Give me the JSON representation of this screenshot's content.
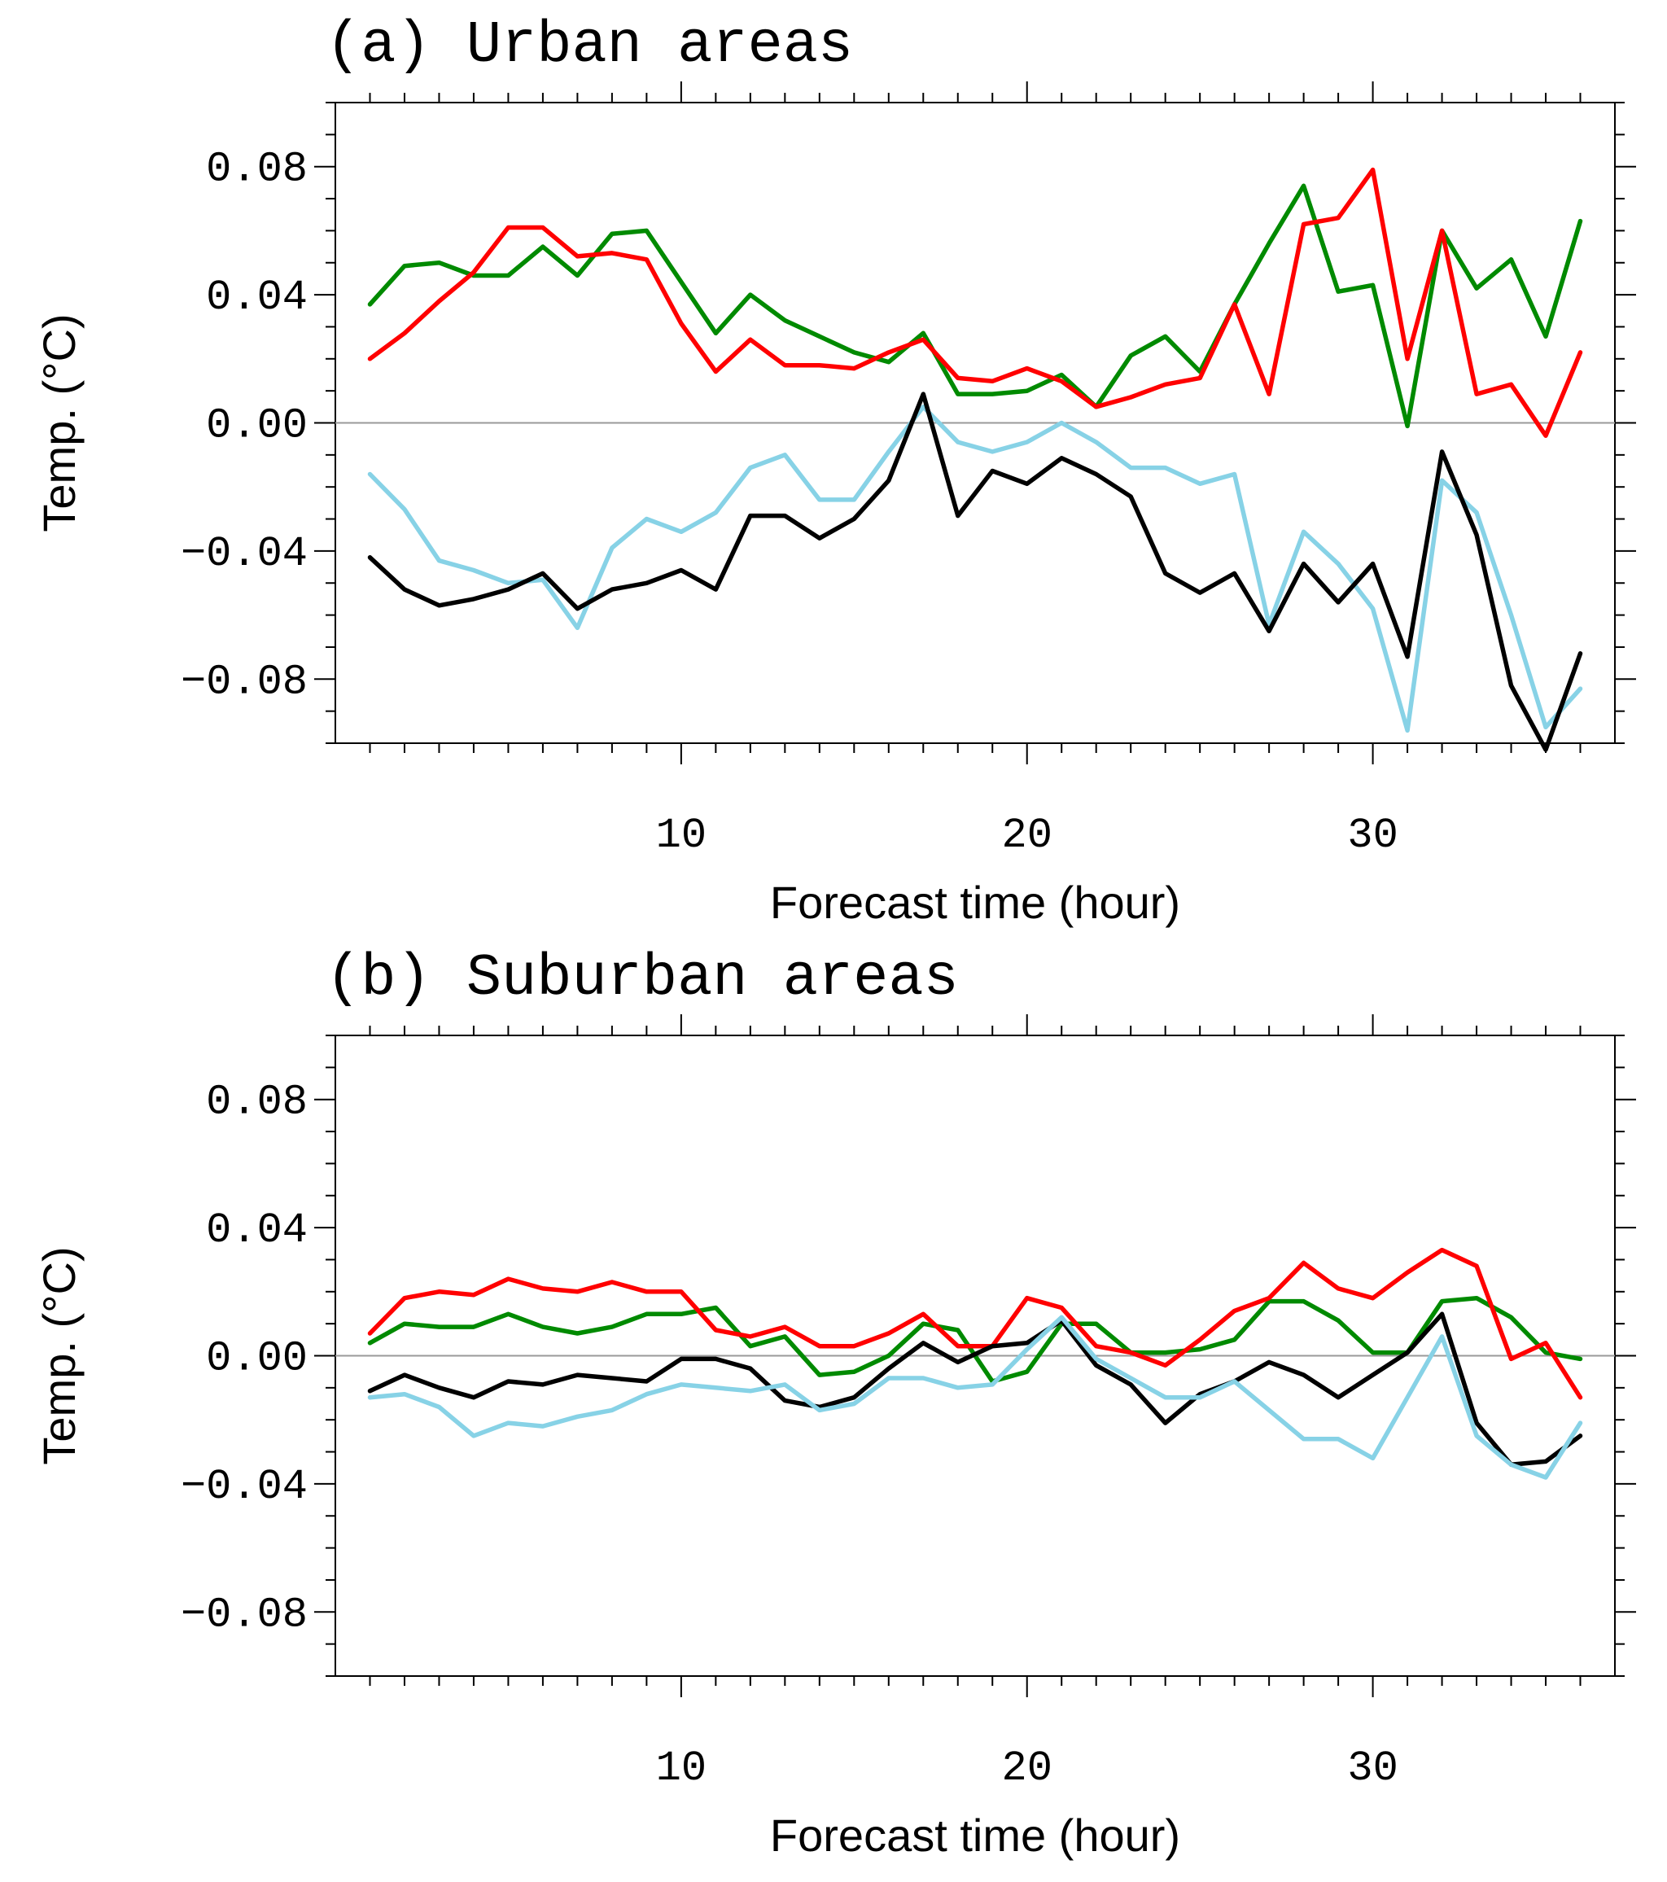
{
  "chart_data": [
    {
      "type": "line",
      "title": "(a) Urban areas",
      "xlabel": "Forecast time (hour)",
      "ylabel": "Temp. (°C)",
      "xlim": [
        0,
        37
      ],
      "ylim": [
        -0.1,
        0.1
      ],
      "xticks": [
        10,
        20,
        30
      ],
      "xtick_labels": [
        "10",
        "20",
        "30"
      ],
      "yticks": [
        0.08,
        0.04,
        0,
        -0.04,
        -0.08
      ],
      "ytick_labels": [
        "0.08",
        "0.04",
        "0.00",
        "−0.04",
        "−0.08"
      ],
      "zero_line": true,
      "x": [
        1,
        2,
        3,
        4,
        5,
        6,
        7,
        8,
        9,
        10,
        11,
        12,
        13,
        14,
        15,
        16,
        17,
        18,
        19,
        20,
        21,
        22,
        23,
        24,
        25,
        26,
        27,
        28,
        29,
        30,
        31,
        32,
        33,
        34,
        35,
        36
      ],
      "series": [
        {
          "name": "green",
          "color": "#008a00",
          "values": [
            0.037,
            0.049,
            0.05,
            0.046,
            0.046,
            0.055,
            0.046,
            0.059,
            0.06,
            0.044,
            0.028,
            0.04,
            0.032,
            0.027,
            0.022,
            0.019,
            0.028,
            0.009,
            0.009,
            0.01,
            0.015,
            0.005,
            0.021,
            0.027,
            0.016,
            0.037,
            0.056,
            0.074,
            0.041,
            0.043,
            -0.001,
            0.06,
            0.042,
            0.051,
            0.027,
            0.063
          ]
        },
        {
          "name": "red",
          "color": "#ff0000",
          "values": [
            0.02,
            0.028,
            0.038,
            0.047,
            0.061,
            0.061,
            0.052,
            0.053,
            0.051,
            0.031,
            0.016,
            0.026,
            0.018,
            0.018,
            0.017,
            0.022,
            0.026,
            0.014,
            0.013,
            0.017,
            0.013,
            0.005,
            0.008,
            0.012,
            0.014,
            0.037,
            0.009,
            0.062,
            0.064,
            0.079,
            0.02,
            0.06,
            0.009,
            0.012,
            -0.004,
            0.022
          ]
        },
        {
          "name": "light-blue",
          "color": "#87d2e6",
          "values": [
            -0.016,
            -0.027,
            -0.043,
            -0.046,
            -0.05,
            -0.049,
            -0.064,
            -0.039,
            -0.03,
            -0.034,
            -0.028,
            -0.014,
            -0.01,
            -0.024,
            -0.024,
            -0.009,
            0.005,
            -0.006,
            -0.009,
            -0.006,
            0.0,
            -0.006,
            -0.014,
            -0.014,
            -0.019,
            -0.016,
            -0.063,
            -0.034,
            -0.044,
            -0.058,
            -0.096,
            -0.018,
            -0.028,
            -0.06,
            -0.095,
            -0.083
          ]
        },
        {
          "name": "black",
          "color": "#000000",
          "values": [
            -0.042,
            -0.052,
            -0.057,
            -0.055,
            -0.052,
            -0.047,
            -0.058,
            -0.052,
            -0.05,
            -0.046,
            -0.052,
            -0.029,
            -0.029,
            -0.036,
            -0.03,
            -0.018,
            0.009,
            -0.029,
            -0.015,
            -0.019,
            -0.011,
            -0.016,
            -0.023,
            -0.047,
            -0.053,
            -0.047,
            -0.065,
            -0.044,
            -0.056,
            -0.044,
            -0.073,
            -0.009,
            -0.035,
            -0.082,
            -0.102,
            -0.072
          ]
        }
      ]
    },
    {
      "type": "line",
      "title": "(b) Suburban areas",
      "xlabel": "Forecast time (hour)",
      "ylabel": "Temp. (°C)",
      "xlim": [
        0,
        37
      ],
      "ylim": [
        -0.1,
        0.1
      ],
      "xticks": [
        10,
        20,
        30
      ],
      "xtick_labels": [
        "10",
        "20",
        "30"
      ],
      "yticks": [
        0.08,
        0.04,
        0,
        -0.04,
        -0.08
      ],
      "ytick_labels": [
        "0.08",
        "0.04",
        "0.00",
        "−0.04",
        "−0.08"
      ],
      "zero_line": true,
      "x": [
        1,
        2,
        3,
        4,
        5,
        6,
        7,
        8,
        9,
        10,
        11,
        12,
        13,
        14,
        15,
        16,
        17,
        18,
        19,
        20,
        21,
        22,
        23,
        24,
        25,
        26,
        27,
        28,
        29,
        30,
        31,
        32,
        33,
        34,
        35,
        36
      ],
      "series": [
        {
          "name": "green",
          "color": "#008a00",
          "values": [
            0.004,
            0.01,
            0.009,
            0.009,
            0.013,
            0.009,
            0.007,
            0.009,
            0.013,
            0.013,
            0.015,
            0.003,
            0.006,
            -0.006,
            -0.005,
            0.0,
            0.01,
            0.008,
            -0.008,
            -0.005,
            0.01,
            0.01,
            0.001,
            0.001,
            0.002,
            0.005,
            0.017,
            0.017,
            0.011,
            0.001,
            0.001,
            0.017,
            0.018,
            0.012,
            0.001,
            -0.001
          ]
        },
        {
          "name": "red",
          "color": "#ff0000",
          "values": [
            0.007,
            0.018,
            0.02,
            0.019,
            0.024,
            0.021,
            0.02,
            0.023,
            0.02,
            0.02,
            0.008,
            0.006,
            0.009,
            0.003,
            0.003,
            0.007,
            0.013,
            0.003,
            0.003,
            0.018,
            0.015,
            0.003,
            0.001,
            -0.003,
            0.005,
            0.014,
            0.018,
            0.029,
            0.021,
            0.018,
            0.026,
            0.033,
            0.028,
            -0.001,
            0.004,
            -0.013
          ]
        },
        {
          "name": "black",
          "color": "#000000",
          "values": [
            -0.011,
            -0.006,
            -0.01,
            -0.013,
            -0.008,
            -0.009,
            -0.006,
            -0.007,
            -0.008,
            -0.001,
            -0.001,
            -0.004,
            -0.014,
            -0.016,
            -0.013,
            -0.004,
            0.004,
            -0.002,
            0.003,
            0.004,
            0.011,
            -0.003,
            -0.009,
            -0.021,
            -0.012,
            -0.008,
            -0.002,
            -0.006,
            -0.013,
            -0.006,
            0.001,
            0.013,
            -0.021,
            -0.034,
            -0.033,
            -0.025
          ]
        },
        {
          "name": "light-blue",
          "color": "#87d2e6",
          "values": [
            -0.013,
            -0.012,
            -0.016,
            -0.025,
            -0.021,
            -0.022,
            -0.019,
            -0.017,
            -0.012,
            -0.009,
            -0.01,
            -0.011,
            -0.009,
            -0.017,
            -0.015,
            -0.007,
            -0.007,
            -0.01,
            -0.009,
            0.002,
            0.012,
            -0.001,
            -0.007,
            -0.013,
            -0.013,
            -0.008,
            -0.017,
            -0.026,
            -0.026,
            -0.032,
            -0.013,
            0.006,
            -0.025,
            -0.034,
            -0.038,
            -0.021
          ]
        }
      ]
    }
  ]
}
